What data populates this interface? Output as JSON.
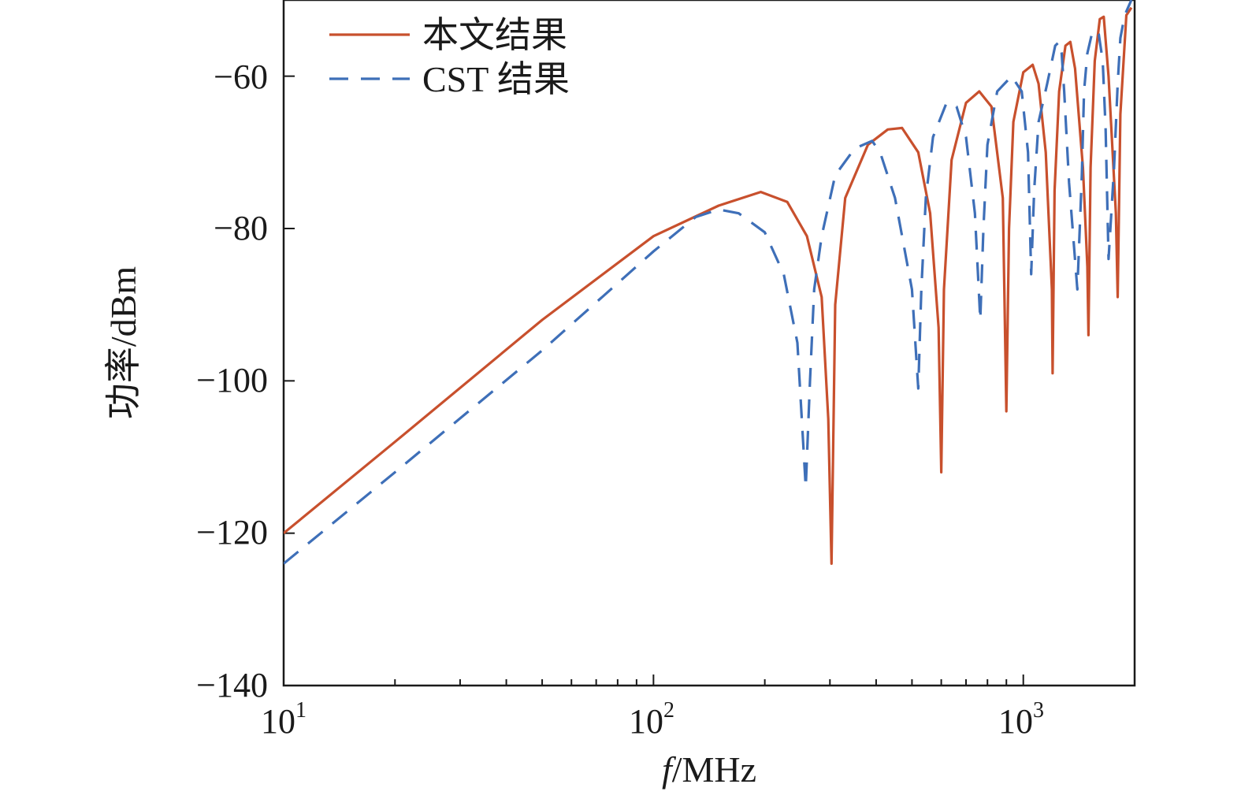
{
  "chart_data": {
    "type": "line",
    "xlabel": "f/MHz",
    "xlabel_italic": "f",
    "xlabel_rest": "/MHz",
    "ylabel": "功率/dBm",
    "xscale": "log",
    "xlim": [
      10,
      2000
    ],
    "ylim": [
      -140,
      -50
    ],
    "grid": false,
    "legend_position": "top-left",
    "x_ticks": [
      {
        "base": "10",
        "exp": "1",
        "value": 10
      },
      {
        "base": "10",
        "exp": "2",
        "value": 100
      },
      {
        "base": "10",
        "exp": "3",
        "value": 1000
      }
    ],
    "y_ticks": [
      {
        "label": "−60",
        "value": -60
      },
      {
        "label": "−80",
        "value": -80
      },
      {
        "label": "−100",
        "value": -100
      },
      {
        "label": "−120",
        "value": -120
      },
      {
        "label": "−140",
        "value": -140
      }
    ],
    "series": [
      {
        "name": "本文结果",
        "color": "#c8502d",
        "style": "solid",
        "x": [
          10,
          20,
          50,
          100,
          150,
          195,
          230,
          260,
          285,
          297,
          303,
          310,
          330,
          380,
          430,
          470,
          520,
          560,
          590,
          600,
          610,
          640,
          700,
          760,
          820,
          880,
          900,
          915,
          940,
          1000,
          1060,
          1100,
          1150,
          1195,
          1200,
          1215,
          1250,
          1300,
          1340,
          1380,
          1450,
          1490,
          1500,
          1520,
          1560,
          1610,
          1650,
          1700,
          1780,
          1800,
          1830,
          1900,
          1960
        ],
        "y": [
          -120,
          -108,
          -92,
          -81,
          -77,
          -75.2,
          -76.5,
          -81,
          -89,
          -105,
          -124,
          -90,
          -76,
          -69,
          -67,
          -66.8,
          -70,
          -78,
          -93,
          -112,
          -88,
          -71,
          -63.5,
          -62,
          -64,
          -76,
          -104,
          -80,
          -66,
          -59.5,
          -58.5,
          -61,
          -70,
          -88,
          -99,
          -75,
          -62,
          -56,
          -55.5,
          -59,
          -72,
          -85,
          -94,
          -72,
          -58,
          -52.5,
          -52.2,
          -60,
          -78,
          -89,
          -65,
          -52,
          -51
        ]
      },
      {
        "name": "CST 结果",
        "color": "#3e6fb8",
        "style": "dashed",
        "x": [
          10,
          20,
          50,
          100,
          130,
          150,
          170,
          200,
          225,
          245,
          258,
          265,
          272,
          285,
          310,
          350,
          390,
          410,
          450,
          500,
          520,
          530,
          545,
          570,
          620,
          660,
          700,
          740,
          765,
          780,
          800,
          850,
          930,
          990,
          1030,
          1050,
          1070,
          1100,
          1160,
          1220,
          1250,
          1270,
          1290,
          1330,
          1400,
          1440,
          1460,
          1490,
          1540,
          1600,
          1640,
          1670,
          1700,
          1760,
          1800,
          1830,
          1880,
          1960
        ],
        "y": [
          -124,
          -112,
          -96,
          -83,
          -78.5,
          -77.5,
          -78,
          -80.5,
          -86,
          -95,
          -114,
          -100,
          -88,
          -81,
          -73,
          -69.5,
          -68.5,
          -70,
          -76,
          -88,
          -101,
          -88,
          -76,
          -68,
          -63.5,
          -64,
          -68,
          -78,
          -92,
          -80,
          -69,
          -62,
          -60,
          -62,
          -70,
          -86,
          -75,
          -66,
          -61,
          -56,
          -55.5,
          -57,
          -62,
          -74,
          -88,
          -73,
          -62,
          -57,
          -54,
          -54.5,
          -58,
          -67,
          -84,
          -72,
          -61,
          -55,
          -52,
          -50
        ]
      }
    ]
  }
}
